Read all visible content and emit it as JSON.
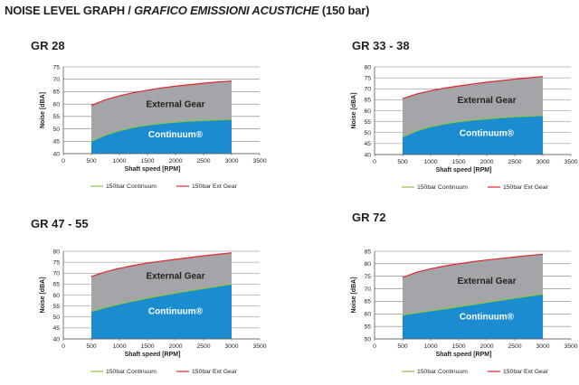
{
  "title": {
    "main": "NOISE LEVEL GRAPH / ",
    "italic": "GRAFICO EMISSIONI ACUSTICHE",
    "suffix": " (150 bar)"
  },
  "colors": {
    "continuum_fill": "#1a8ccf",
    "ext_fill": "#a3a5a8",
    "continuum_line": "#8dc63f",
    "ext_line": "#e0262b",
    "grid": "#7f7f7f"
  },
  "chart_data": [
    {
      "type": "area",
      "title": "GR 28",
      "xlabel": "Shaft speed [RPM]",
      "ylabel": "Noise [dBA]",
      "xlim": [
        0,
        3500
      ],
      "ylim": [
        40,
        75
      ],
      "xticks": [
        "0",
        "500",
        "1000",
        "1500",
        "2000",
        "2500",
        "3000",
        "3500"
      ],
      "yticks": [
        "40",
        "45",
        "50",
        "55",
        "60",
        "65",
        "70",
        "75"
      ],
      "x": [
        500,
        750,
        1000,
        1250,
        1500,
        1750,
        2000,
        2250,
        2500,
        2750,
        3000
      ],
      "series": [
        {
          "name": "150bar Continuum",
          "values": [
            45.0,
            47.5,
            49.3,
            50.6,
            51.5,
            52.2,
            52.7,
            53.1,
            53.4,
            53.6,
            53.8
          ]
        },
        {
          "name": "150bar Ext Gear",
          "values": [
            59.5,
            61.7,
            63.3,
            64.6,
            65.6,
            66.5,
            67.2,
            67.8,
            68.4,
            68.9,
            69.3
          ]
        }
      ],
      "annotations": {
        "ext": "External Gear",
        "cont": "Continuum®"
      },
      "legend": "bottom"
    },
    {
      "type": "area",
      "title": "GR 33 - 38",
      "xlabel": "Shaft speed [RPM]",
      "ylabel": "Noise [dBA]",
      "xlim": [
        0,
        3500
      ],
      "ylim": [
        40,
        80
      ],
      "xticks": [
        "0",
        "500",
        "1000",
        "1500",
        "2000",
        "2500",
        "3000",
        "3500"
      ],
      "yticks": [
        "40",
        "45",
        "50",
        "55",
        "60",
        "65",
        "70",
        "75",
        "80"
      ],
      "x": [
        500,
        750,
        1000,
        1250,
        1500,
        1750,
        2000,
        2250,
        2500,
        2750,
        3000
      ],
      "series": [
        {
          "name": "150bar Continuum",
          "values": [
            48.0,
            50.8,
            52.7,
            54.0,
            55.0,
            55.7,
            56.3,
            56.8,
            57.2,
            57.5,
            57.8
          ]
        },
        {
          "name": "150bar Ext Gear",
          "values": [
            65.5,
            67.6,
            69.1,
            70.3,
            71.3,
            72.2,
            73.0,
            73.7,
            74.4,
            75.0,
            75.6
          ]
        }
      ],
      "annotations": {
        "ext": "External Gear",
        "cont": "Continuum®"
      },
      "legend": "bottom"
    },
    {
      "type": "area",
      "title": "GR 47 - 55",
      "xlabel": "Shaft speed [RPM]",
      "ylabel": "Noise [dBA]",
      "xlim": [
        0,
        3500
      ],
      "ylim": [
        40,
        80
      ],
      "xticks": [
        "0",
        "500",
        "1000",
        "1500",
        "2000",
        "2500",
        "3000",
        "3500"
      ],
      "yticks": [
        "40",
        "45",
        "50",
        "55",
        "60",
        "65",
        "70",
        "75",
        "80"
      ],
      "x": [
        500,
        750,
        1000,
        1250,
        1500,
        1750,
        2000,
        2250,
        2500,
        2750,
        3000
      ],
      "series": [
        {
          "name": "150bar Continuum",
          "values": [
            52.5,
            54.3,
            55.9,
            57.3,
            58.6,
            59.8,
            60.9,
            62.0,
            63.0,
            64.0,
            65.0
          ]
        },
        {
          "name": "150bar Ext Gear",
          "values": [
            68.5,
            70.6,
            72.2,
            73.5,
            74.6,
            75.5,
            76.3,
            77.1,
            77.9,
            78.6,
            79.3
          ]
        }
      ],
      "annotations": {
        "ext": "External Gear",
        "cont": "Continuum®"
      },
      "legend": "bottom"
    },
    {
      "type": "area",
      "title": "GR 72",
      "xlabel": "Shaft speed [RPM]",
      "ylabel": "Noise [dBA]",
      "xlim": [
        0,
        3500
      ],
      "ylim": [
        50,
        85
      ],
      "xticks": [
        "0",
        "500",
        "1000",
        "1500",
        "2000",
        "2500",
        "3000",
        "3500"
      ],
      "yticks": [
        "50",
        "55",
        "60",
        "65",
        "70",
        "75",
        "80",
        "85"
      ],
      "x": [
        500,
        750,
        1000,
        1250,
        1500,
        1750,
        2000,
        2250,
        2500,
        2750,
        3000
      ],
      "series": [
        {
          "name": "150bar Continuum",
          "values": [
            59.5,
            60.4,
            61.2,
            62.0,
            62.9,
            63.7,
            64.6,
            65.4,
            66.3,
            67.1,
            67.9
          ]
        },
        {
          "name": "150bar Ext Gear",
          "values": [
            74.5,
            76.6,
            78.0,
            79.1,
            80.0,
            80.8,
            81.5,
            82.1,
            82.7,
            83.3,
            83.8
          ]
        }
      ],
      "annotations": {
        "ext": "External Gear",
        "cont": "Continuum®"
      },
      "legend": "bottom"
    }
  ]
}
